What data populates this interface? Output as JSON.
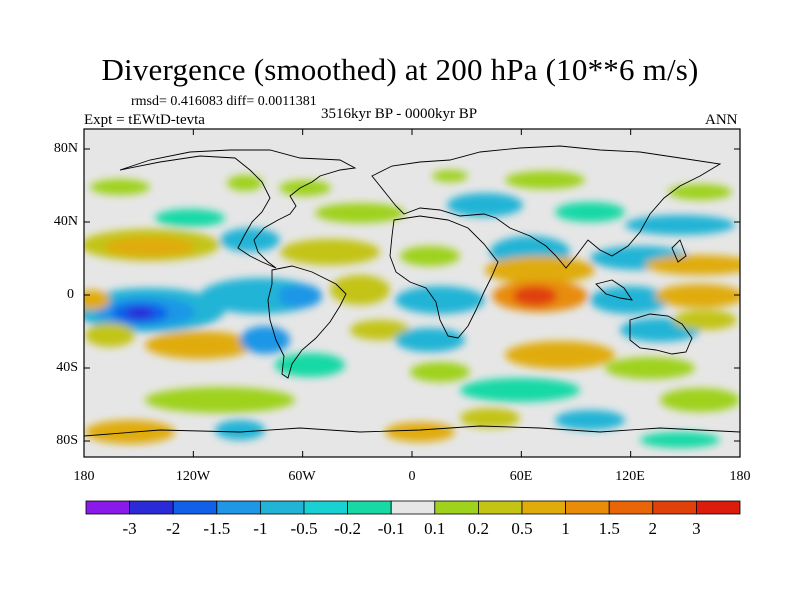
{
  "title": "Divergence (smoothed) at 200 hPa (10**6 m/s)",
  "stats": "rmsd= 0.416083 diff= 0.0011381",
  "experiment": "Expt = tEWtD-tevta",
  "period": "3516kyr BP - 0000kyr BP",
  "season": "ANN",
  "lat_labels": [
    "80N",
    "40N",
    "0",
    "40S",
    "80S"
  ],
  "lon_labels": [
    "180",
    "120W",
    "60W",
    "0",
    "60E",
    "120E",
    "180"
  ],
  "colorbar": {
    "labels": [
      "-3",
      "-2",
      "-1.5",
      "-1",
      "-0.5",
      "-0.2",
      "-0.1",
      "0.1",
      "0.2",
      "0.5",
      "1",
      "1.5",
      "2",
      "3"
    ],
    "colors": [
      "#8a1aea",
      "#2a2ad8",
      "#1060e8",
      "#1f96e6",
      "#22b4d6",
      "#19d0d2",
      "#16d9a6",
      "#e6e6e6",
      "#9fd21c",
      "#c3c414",
      "#e0ac0c",
      "#e88c0a",
      "#e86608",
      "#e0400a",
      "#dc1c0c"
    ]
  },
  "colors": {
    "background": "#e6e6e6",
    "neg_weak": "#16d9a6",
    "neg_1": "#22b4d6",
    "neg_2": "#1f96e6",
    "neg_3": "#1060e8",
    "neg_4": "#2a2ad8",
    "pos_weak": "#9fd21c",
    "pos_1": "#c3c414",
    "pos_2": "#e0ac0c",
    "pos_3": "#e88c0a",
    "pos_4": "#e0400a"
  }
}
